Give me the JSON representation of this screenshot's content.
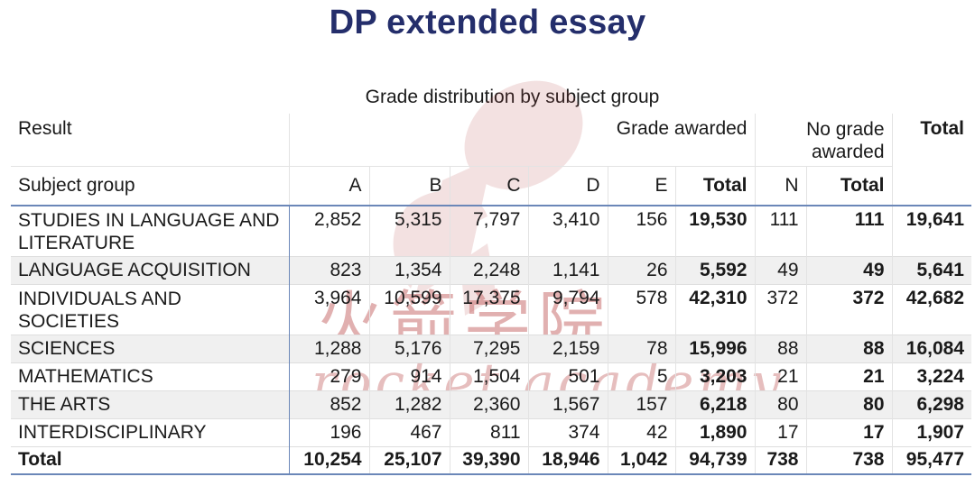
{
  "title": "DP extended essay",
  "subtitle": "Grade distribution by subject group",
  "watermark": {
    "cn": "火箭学院",
    "en": "rocket academy"
  },
  "header": {
    "result": "Result",
    "grade_awarded": "Grade awarded",
    "no_grade_awarded": "No grade awarded",
    "total": "Total",
    "subject_group": "Subject group",
    "cols": [
      "A",
      "B",
      "C",
      "D",
      "E",
      "Total",
      "N",
      "Total"
    ]
  },
  "rows": [
    {
      "label": "STUDIES IN LANGUAGE AND LITERATURE",
      "A": "2,852",
      "B": "5,315",
      "C": "7,797",
      "D": "3,410",
      "E": "156",
      "grade_total": "19,530",
      "N": "111",
      "no_grade_total": "111",
      "total": "19,641"
    },
    {
      "label": "LANGUAGE ACQUISITION",
      "A": "823",
      "B": "1,354",
      "C": "2,248",
      "D": "1,141",
      "E": "26",
      "grade_total": "5,592",
      "N": "49",
      "no_grade_total": "49",
      "total": "5,641"
    },
    {
      "label": "INDIVIDUALS AND SOCIETIES",
      "A": "3,964",
      "B": "10,599",
      "C": "17,375",
      "D": "9,794",
      "E": "578",
      "grade_total": "42,310",
      "N": "372",
      "no_grade_total": "372",
      "total": "42,682"
    },
    {
      "label": "SCIENCES",
      "A": "1,288",
      "B": "5,176",
      "C": "7,295",
      "D": "2,159",
      "E": "78",
      "grade_total": "15,996",
      "N": "88",
      "no_grade_total": "88",
      "total": "16,084"
    },
    {
      "label": "MATHEMATICS",
      "A": "279",
      "B": "914",
      "C": "1,504",
      "D": "501",
      "E": "5",
      "grade_total": "3,203",
      "N": "21",
      "no_grade_total": "21",
      "total": "3,224"
    },
    {
      "label": "THE ARTS",
      "A": "852",
      "B": "1,282",
      "C": "2,360",
      "D": "1,567",
      "E": "157",
      "grade_total": "6,218",
      "N": "80",
      "no_grade_total": "80",
      "total": "6,298"
    },
    {
      "label": "INTERDISCIPLINARY",
      "A": "196",
      "B": "467",
      "C": "811",
      "D": "374",
      "E": "42",
      "grade_total": "1,890",
      "N": "17",
      "no_grade_total": "17",
      "total": "1,907"
    }
  ],
  "totals": {
    "label": "Total",
    "A": "10,254",
    "B": "25,107",
    "C": "39,390",
    "D": "18,946",
    "E": "1,042",
    "grade_total": "94,739",
    "N": "738",
    "no_grade_total": "738",
    "total": "95,477"
  }
}
